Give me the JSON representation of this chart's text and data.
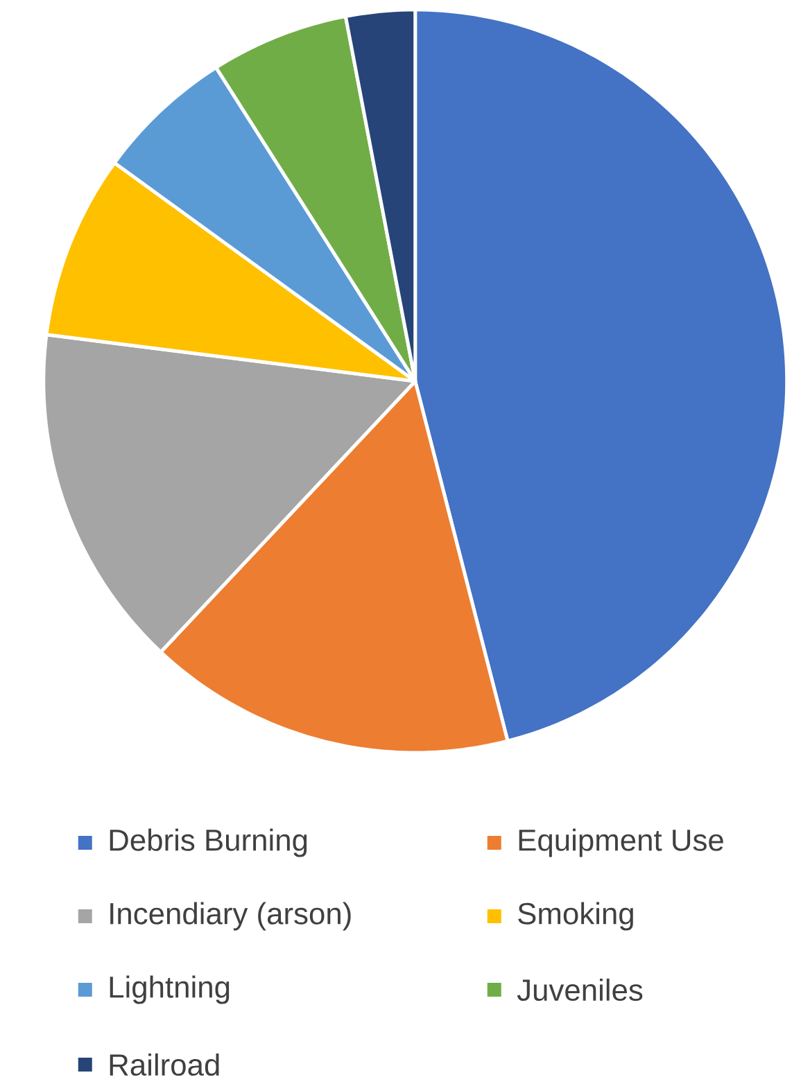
{
  "chart_data": {
    "type": "pie",
    "categories": [
      "Debris Burning",
      "Equipment Use",
      "Incendiary (arson)",
      "Smoking",
      "Lightning",
      "Juveniles",
      "Railroad"
    ],
    "values": [
      46,
      16,
      15,
      8,
      6,
      6,
      3
    ],
    "colors": [
      "#4472c4",
      "#ed7d31",
      "#a5a5a5",
      "#ffc000",
      "#5b9bd5",
      "#70ad47",
      "#264478"
    ],
    "legend": "bottom"
  }
}
